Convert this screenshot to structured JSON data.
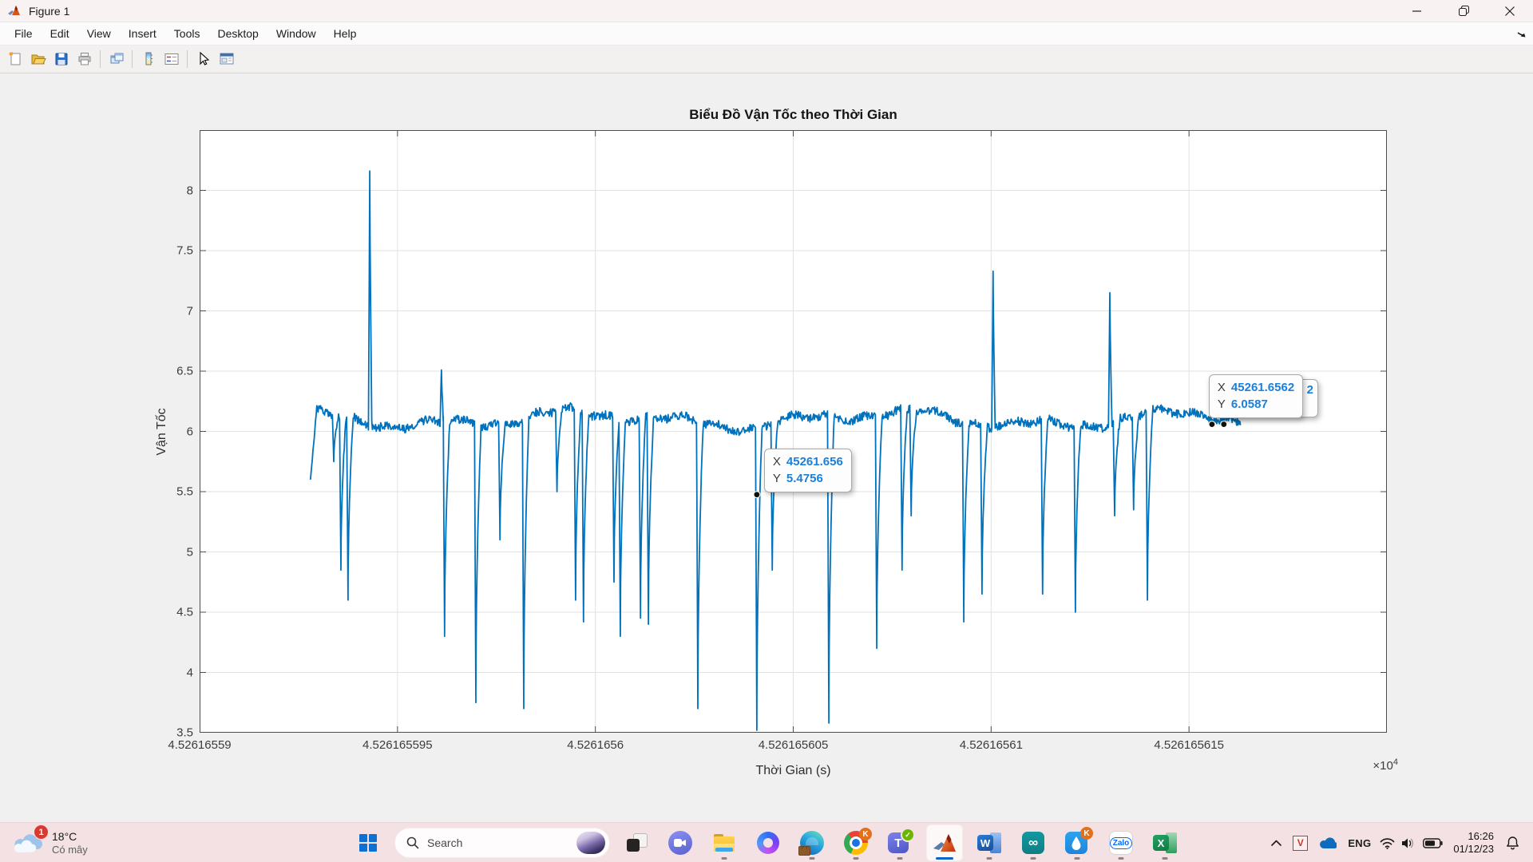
{
  "window": {
    "title": "Figure 1",
    "controls": [
      "minimize",
      "restore",
      "close"
    ]
  },
  "menu": {
    "items": [
      "File",
      "Edit",
      "View",
      "Insert",
      "Tools",
      "Desktop",
      "Window",
      "Help"
    ]
  },
  "toolbar": {
    "buttons": [
      "new-figure",
      "open-file",
      "save-figure",
      "print-figure",
      "duplicate-figure",
      "insert-colorbar",
      "insert-legend",
      "edit-plot",
      "dock-figure"
    ]
  },
  "chart_data": {
    "type": "line",
    "title": "Biểu Đồ Vận Tốc theo Thời Gian",
    "xlabel": "Thời Gian (s)",
    "ylabel": "Vận Tốc",
    "x_multiplier_base": "×10",
    "x_multiplier_exp": "4",
    "grid": true,
    "legend_position": "none",
    "line_color": "#0072BD",
    "xlim": [
      45261.6559,
      45261.6562
    ],
    "ylim": [
      3.5,
      8.5
    ],
    "x_ticks": [
      {
        "value": 45261.6559,
        "label": "4.52616559"
      },
      {
        "value": 45261.65595,
        "label": "4.526165595"
      },
      {
        "value": 45261.656,
        "label": "4.5261656"
      },
      {
        "value": 45261.65605,
        "label": "4.526165605"
      },
      {
        "value": 45261.6561,
        "label": "4.52616561"
      },
      {
        "value": 45261.65615,
        "label": "4.526165615"
      }
    ],
    "y_ticks": [
      {
        "value": 3.5,
        "label": "3.5"
      },
      {
        "value": 4,
        "label": "4"
      },
      {
        "value": 4.5,
        "label": "4.5"
      },
      {
        "value": 5,
        "label": "5"
      },
      {
        "value": 5.5,
        "label": "5.5"
      },
      {
        "value": 6,
        "label": "6"
      },
      {
        "value": 6.5,
        "label": "6.5"
      },
      {
        "value": 7,
        "label": "7"
      },
      {
        "value": 7.5,
        "label": "7.5"
      },
      {
        "value": 8,
        "label": "8"
      }
    ],
    "x_data_start": 45261.655928,
    "x_data_end": 45261.656163,
    "start_value": 5.6,
    "baseline": 6.1,
    "down_spikes": [
      [
        45261.6559339,
        5.75
      ],
      [
        45261.6559357,
        4.85
      ],
      [
        45261.6559375,
        4.6
      ],
      [
        45261.6559619,
        4.3
      ],
      [
        45261.6559698,
        3.75
      ],
      [
        45261.6559759,
        5.1
      ],
      [
        45261.6559819,
        3.7
      ],
      [
        45261.6559903,
        5.5
      ],
      [
        45261.655995,
        4.6
      ],
      [
        45261.655997,
        4.42
      ],
      [
        45261.6560047,
        4.75
      ],
      [
        45261.6560063,
        4.3
      ],
      [
        45261.6560114,
        4.45
      ],
      [
        45261.6560134,
        4.4
      ],
      [
        45261.6560259,
        3.7
      ],
      [
        45261.6560408,
        3.52
      ],
      [
        45261.6560447,
        4.85
      ],
      [
        45261.656059,
        3.58
      ],
      [
        45261.6560711,
        4.2
      ],
      [
        45261.6560775,
        4.85
      ],
      [
        45261.6560798,
        5.3
      ],
      [
        45261.6560931,
        4.42
      ],
      [
        45261.6560977,
        4.65
      ],
      [
        45261.656113,
        4.65
      ],
      [
        45261.6561213,
        4.5
      ],
      [
        45261.6561312,
        5.3
      ],
      [
        45261.656136,
        5.35
      ],
      [
        45261.6561395,
        4.6
      ]
    ],
    "up_spikes": [
      [
        45261.655943,
        8.16
      ],
      [
        45261.6559611,
        6.51
      ],
      [
        45261.6561005,
        7.33
      ],
      [
        45261.65613,
        7.15
      ]
    ],
    "datatips": [
      {
        "x_label": "X",
        "x_value": "45261.656",
        "y_label": "Y",
        "y_value": "5.4756",
        "anchor": [
          45261.6560408,
          5.4756
        ],
        "box_offset": [
          9,
          -58
        ]
      },
      {
        "x_label": "X",
        "x_value": "45261.6562",
        "y_label": "Y",
        "y_value": "6.0587",
        "anchor": [
          45261.6561558,
          6.0587
        ],
        "anchor2": [
          45261.6561588,
          6.0587
        ],
        "box_offset": [
          -4,
          -63
        ],
        "behind_fragment": "2"
      }
    ]
  },
  "taskbar": {
    "weather": {
      "temp": "18°C",
      "condition": "Có mây",
      "badge": "1"
    },
    "search": {
      "placeholder": "Search"
    },
    "apps": [
      "start",
      "search",
      "task-view",
      "chat",
      "file-explorer",
      "microsoft-365",
      "edge",
      "chrome",
      "teams",
      "matlab",
      "word",
      "arduino",
      "k-drive",
      "zalo",
      "excel"
    ],
    "zalo_label": "Zalo",
    "badges": {
      "chrome": "K",
      "k_drive": "K"
    },
    "tray": {
      "language": "ENG",
      "time": "16:26",
      "date": "01/12/23"
    }
  }
}
